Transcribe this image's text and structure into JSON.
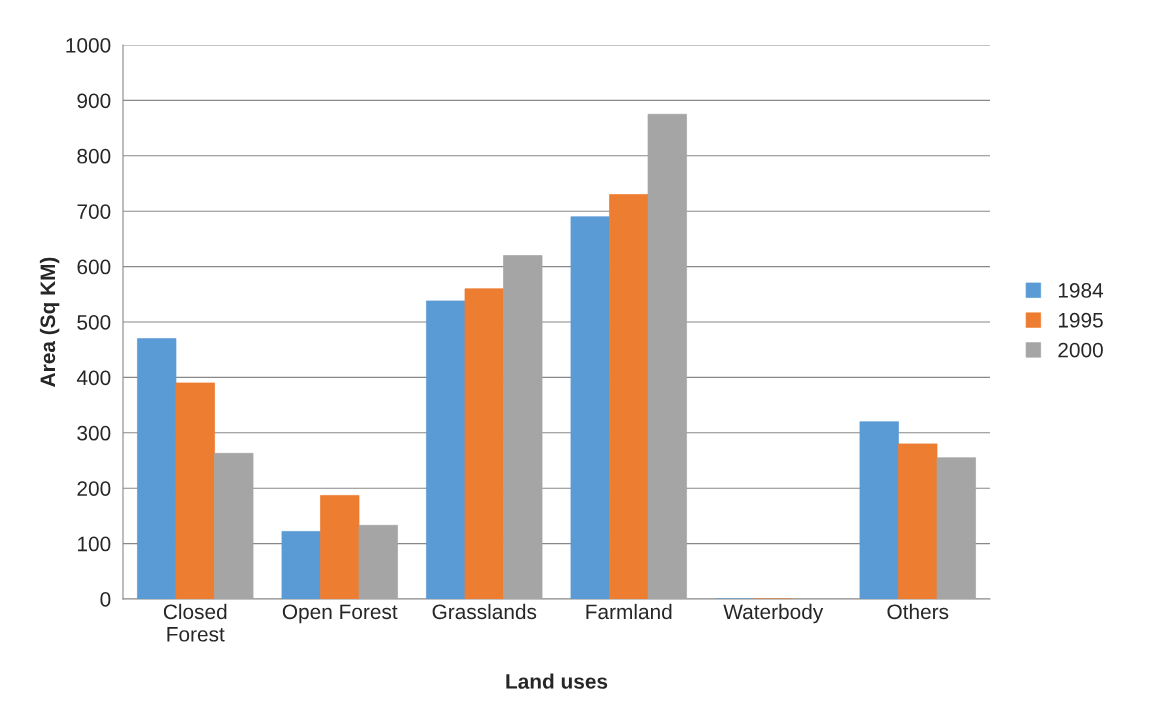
{
  "chart_data": {
    "type": "bar",
    "xlabel": "Land uses",
    "ylabel": "Area (Sq KM)",
    "categories": [
      "Closed\nForest",
      "Open Forest",
      "Grasslands",
      "Farmland",
      "Waterbody",
      "Others"
    ],
    "series": [
      {
        "name": "1984",
        "color": "#5b9bd5",
        "values": [
          470,
          122,
          538,
          690,
          0,
          320
        ]
      },
      {
        "name": "1995",
        "color": "#ed7d31",
        "values": [
          390,
          187,
          560,
          730,
          0,
          280
        ]
      },
      {
        "name": "2000",
        "color": "#a5a5a5",
        "values": [
          263,
          133,
          620,
          875,
          0,
          255
        ]
      }
    ],
    "ylim": [
      0,
      1000
    ],
    "yticks": [
      0,
      100,
      200,
      300,
      400,
      500,
      600,
      700,
      800,
      900,
      1000
    ],
    "grid": "y",
    "legend": "right"
  }
}
